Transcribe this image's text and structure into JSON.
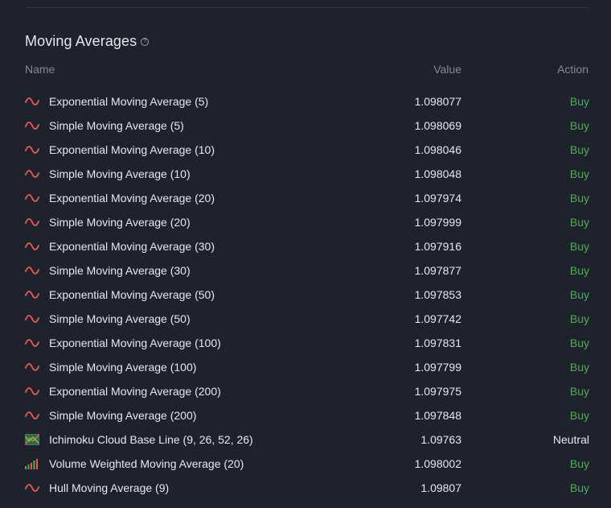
{
  "section": {
    "title": "Moving Averages",
    "help_glyph": "?"
  },
  "columns": {
    "name": "Name",
    "value": "Value",
    "action": "Action"
  },
  "colors": {
    "buy": "#4caf50",
    "neutral": "#e6e8ee",
    "wave_icon": "#f05a4a"
  },
  "rows": [
    {
      "icon": "wave-icon",
      "name": "Exponential Moving Average (5)",
      "value": "1.098077",
      "action": "Buy"
    },
    {
      "icon": "wave-icon",
      "name": "Simple Moving Average (5)",
      "value": "1.098069",
      "action": "Buy"
    },
    {
      "icon": "wave-icon",
      "name": "Exponential Moving Average (10)",
      "value": "1.098046",
      "action": "Buy"
    },
    {
      "icon": "wave-icon",
      "name": "Simple Moving Average (10)",
      "value": "1.098048",
      "action": "Buy"
    },
    {
      "icon": "wave-icon",
      "name": "Exponential Moving Average (20)",
      "value": "1.097974",
      "action": "Buy"
    },
    {
      "icon": "wave-icon",
      "name": "Simple Moving Average (20)",
      "value": "1.097999",
      "action": "Buy"
    },
    {
      "icon": "wave-icon",
      "name": "Exponential Moving Average (30)",
      "value": "1.097916",
      "action": "Buy"
    },
    {
      "icon": "wave-icon",
      "name": "Simple Moving Average (30)",
      "value": "1.097877",
      "action": "Buy"
    },
    {
      "icon": "wave-icon",
      "name": "Exponential Moving Average (50)",
      "value": "1.097853",
      "action": "Buy"
    },
    {
      "icon": "wave-icon",
      "name": "Simple Moving Average (50)",
      "value": "1.097742",
      "action": "Buy"
    },
    {
      "icon": "wave-icon",
      "name": "Exponential Moving Average (100)",
      "value": "1.097831",
      "action": "Buy"
    },
    {
      "icon": "wave-icon",
      "name": "Simple Moving Average (100)",
      "value": "1.097799",
      "action": "Buy"
    },
    {
      "icon": "wave-icon",
      "name": "Exponential Moving Average (200)",
      "value": "1.097975",
      "action": "Buy"
    },
    {
      "icon": "wave-icon",
      "name": "Simple Moving Average (200)",
      "value": "1.097848",
      "action": "Buy"
    },
    {
      "icon": "ichimoku-cloud-icon",
      "name": "Ichimoku Cloud Base Line (9, 26, 52, 26)",
      "value": "1.09763",
      "action": "Neutral"
    },
    {
      "icon": "volume-bars-icon",
      "name": "Volume Weighted Moving Average (20)",
      "value": "1.098002",
      "action": "Buy"
    },
    {
      "icon": "wave-icon",
      "name": "Hull Moving Average (9)",
      "value": "1.09807",
      "action": "Buy"
    }
  ]
}
